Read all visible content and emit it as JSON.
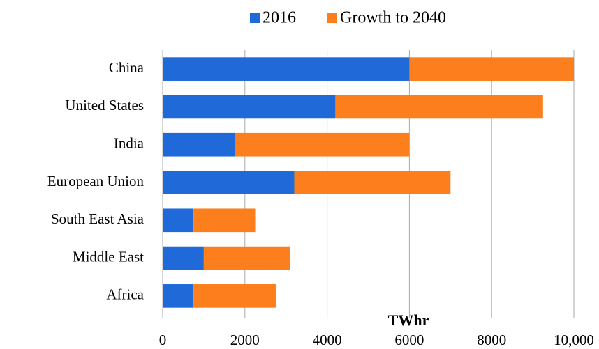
{
  "chart_data": {
    "type": "stacked_bar_horizontal",
    "categories": [
      "China",
      "United States",
      "India",
      "European Union",
      "South East Asia",
      "Middle East",
      "Africa"
    ],
    "series": [
      {
        "name": "2016",
        "color": "#1f6ad8",
        "values": [
          6000,
          4200,
          1750,
          3200,
          750,
          1000,
          750
        ]
      },
      {
        "name": "Growth to 2040",
        "color": "#fd7e1c",
        "values": [
          4000,
          5050,
          4250,
          3800,
          1500,
          2100,
          2000
        ]
      }
    ],
    "x_label": "TWhr",
    "xlim": [
      0,
      10000
    ],
    "xticks": [
      0,
      2000,
      4000,
      6000,
      8000,
      {
        "value": 10000,
        "label": "10,000"
      }
    ],
    "grid": true,
    "legend": "top"
  }
}
